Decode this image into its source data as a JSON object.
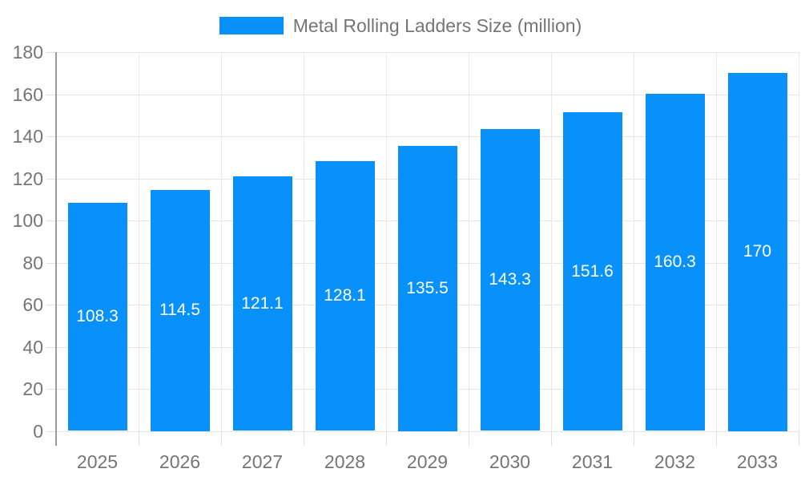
{
  "chart_data": {
    "type": "bar",
    "title": "Metal Rolling Ladders Size (million)",
    "legend": "Metal Rolling Ladders Size (million)",
    "legend_position": "top",
    "categories": [
      "2025",
      "2026",
      "2027",
      "2028",
      "2029",
      "2030",
      "2031",
      "2032",
      "2033"
    ],
    "values": [
      108.3,
      114.5,
      121.1,
      128.1,
      135.5,
      143.3,
      151.6,
      160.3,
      170
    ],
    "xlabel": "",
    "ylabel": "",
    "ylim": [
      0,
      180
    ],
    "ytick_step": 20,
    "grid": true,
    "colors": {
      "bar": "#0991fb",
      "bar_value_label": "#ffffff",
      "axis_text": "#757575",
      "grid_line": "#e6e6e6",
      "axis_line": "#9b9b9b"
    }
  }
}
